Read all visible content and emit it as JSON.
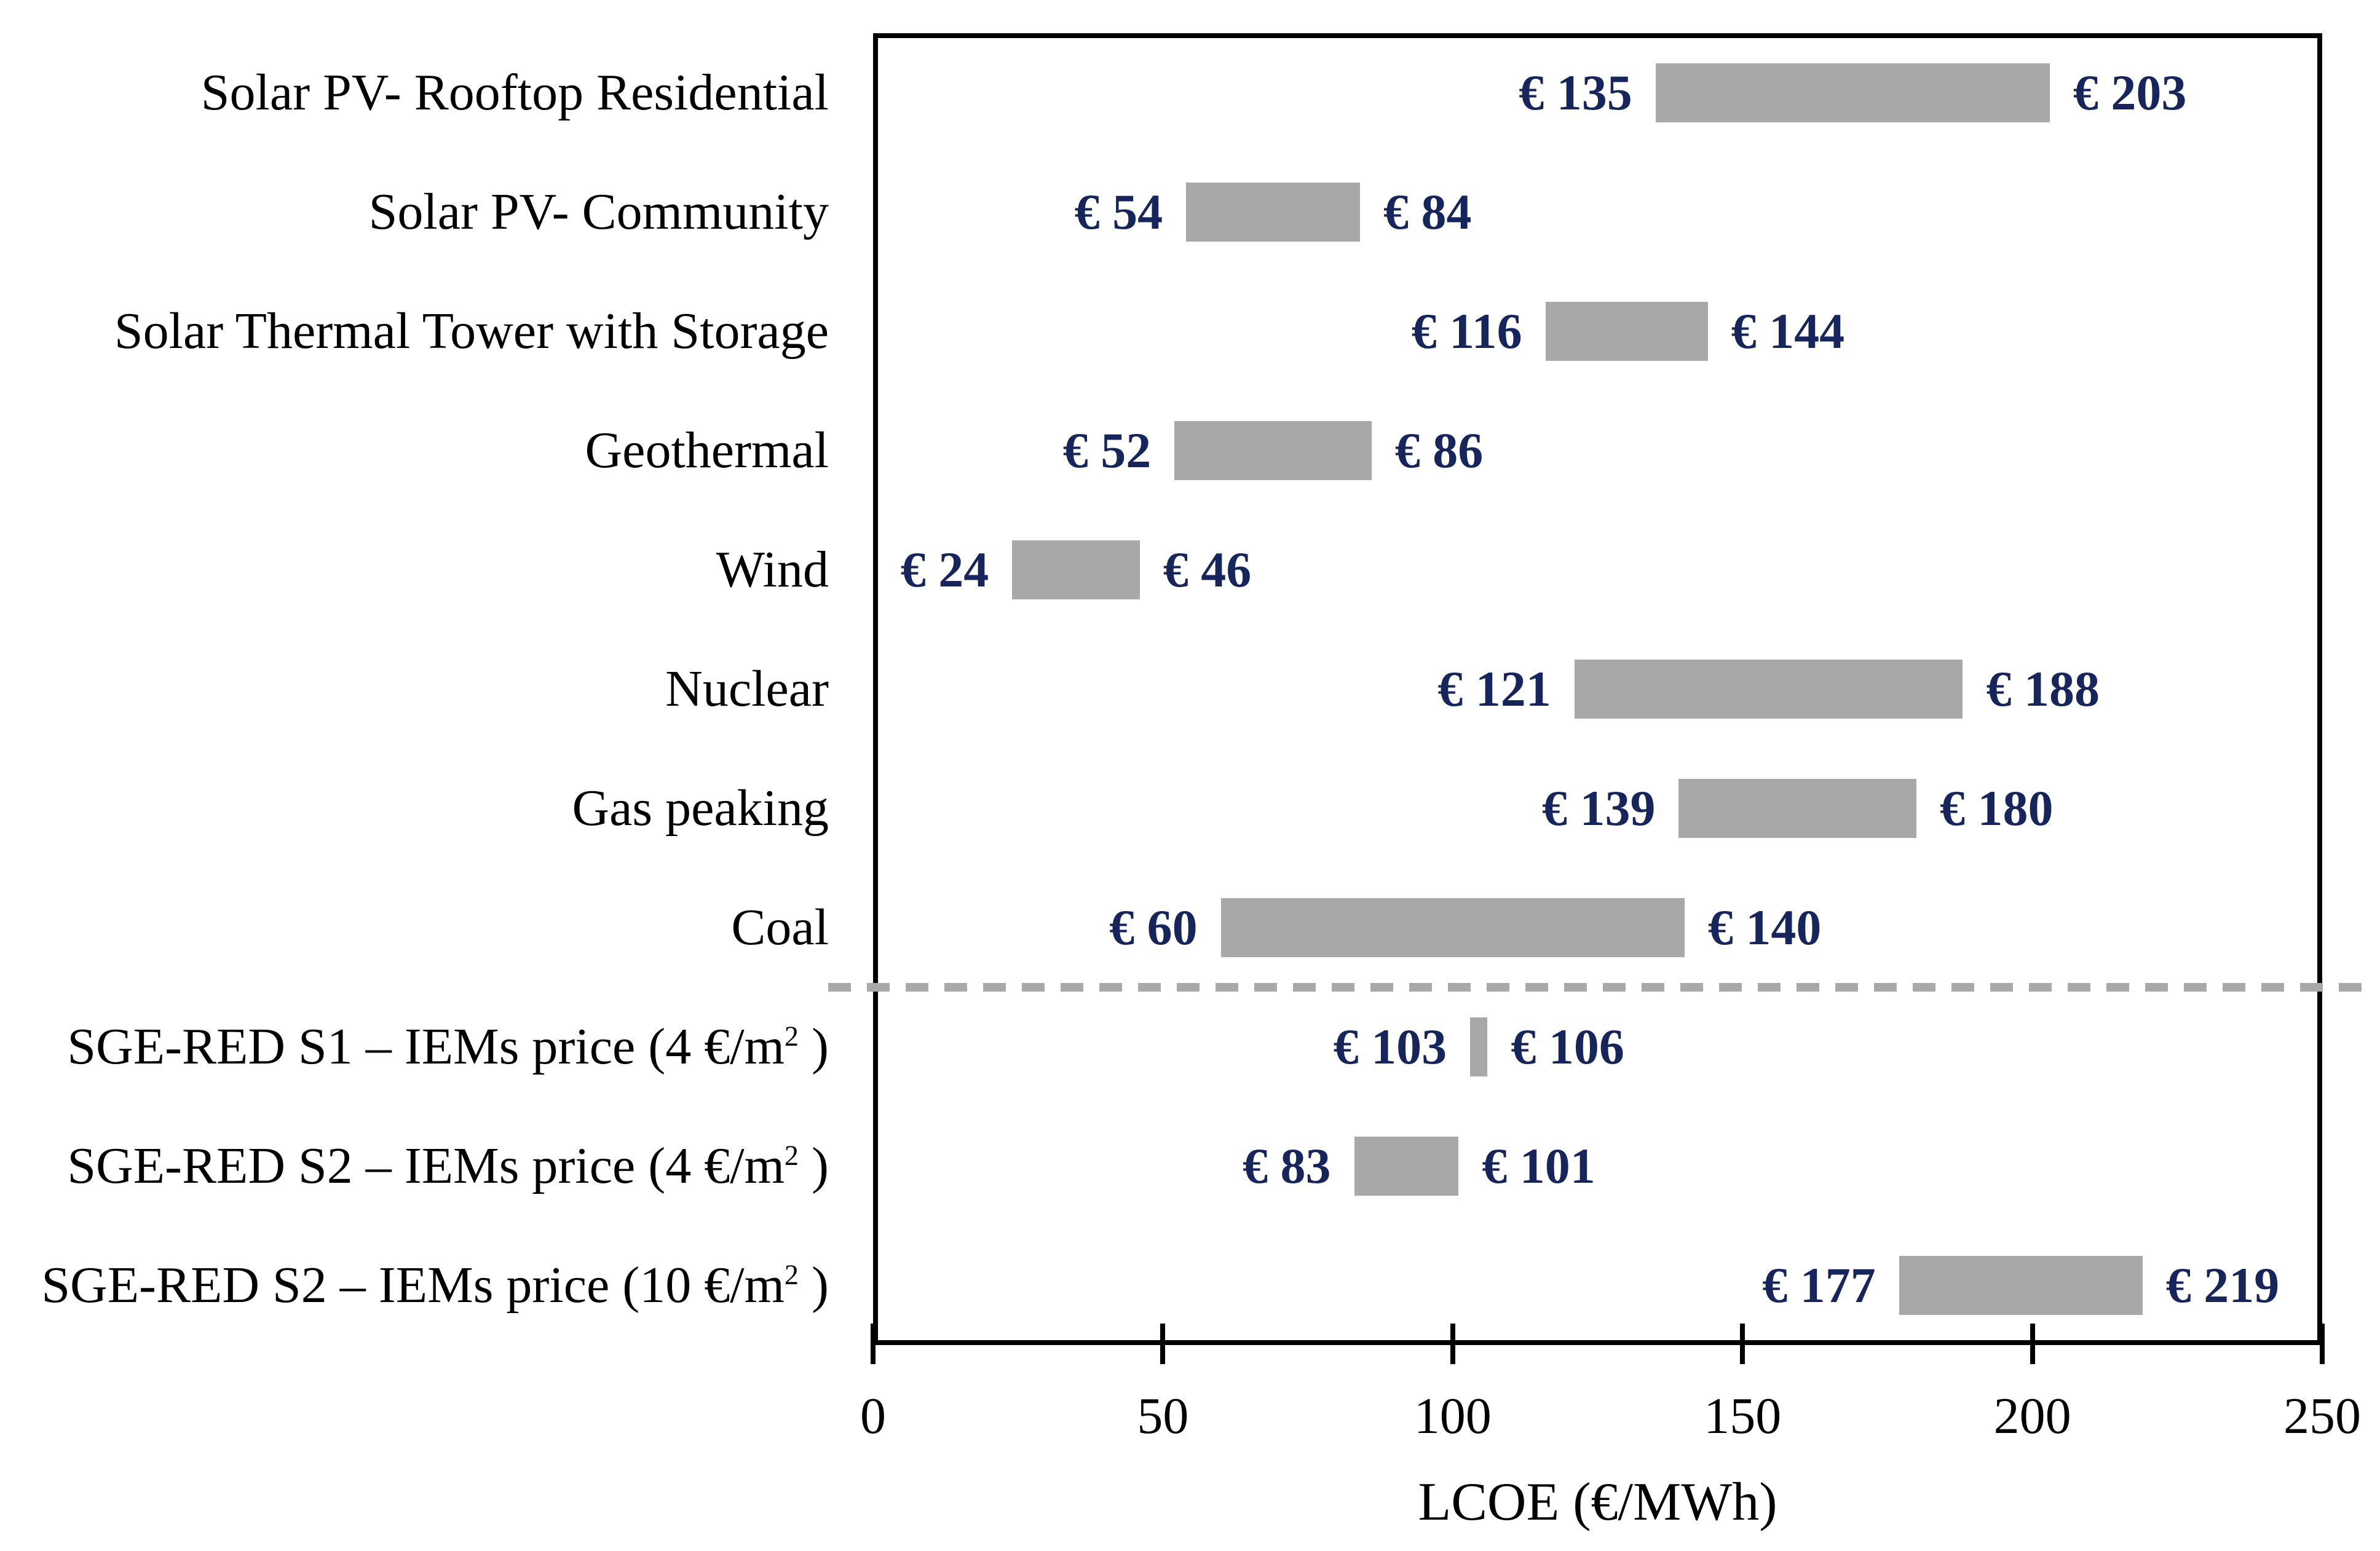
{
  "chart_data": {
    "type": "bar",
    "orientation": "horizontal-range",
    "title": "",
    "xlabel": "LCOE (€/MWh)",
    "xlim": [
      0,
      250
    ],
    "x_ticks": [
      0,
      50,
      100,
      150,
      200,
      250
    ],
    "grid": false,
    "legend": "none",
    "currency_prefix": "€ ",
    "categories": [
      "Solar PV- Rooftop Residential",
      "Solar PV- Community",
      "Solar Thermal Tower with Storage",
      "Geothermal",
      "Wind",
      "Nuclear",
      "Gas peaking",
      "Coal",
      "SGE-RED S1 – IEMs price (4 €/m² )",
      "SGE-RED S2 – IEMs price (4 €/m² )",
      "SGE-RED S2 – IEMs price (10 €/m² )"
    ],
    "series": [
      {
        "name": "LCOE range",
        "ranges": [
          [
            135,
            203
          ],
          [
            54,
            84
          ],
          [
            116,
            144
          ],
          [
            52,
            86
          ],
          [
            24,
            46
          ],
          [
            121,
            188
          ],
          [
            139,
            180
          ],
          [
            60,
            140
          ],
          [
            103,
            106
          ],
          [
            83,
            101
          ],
          [
            177,
            219
          ]
        ]
      }
    ],
    "separator": {
      "after_category": "Coal",
      "after_index": 7,
      "style": "dashed"
    },
    "colors": {
      "bar": "#A8A8A8",
      "value_labels": "#16265C",
      "category_labels": "#000000",
      "axis": "#000000",
      "separator_line": "#A9A9A9",
      "background": "#FFFFFF"
    }
  }
}
